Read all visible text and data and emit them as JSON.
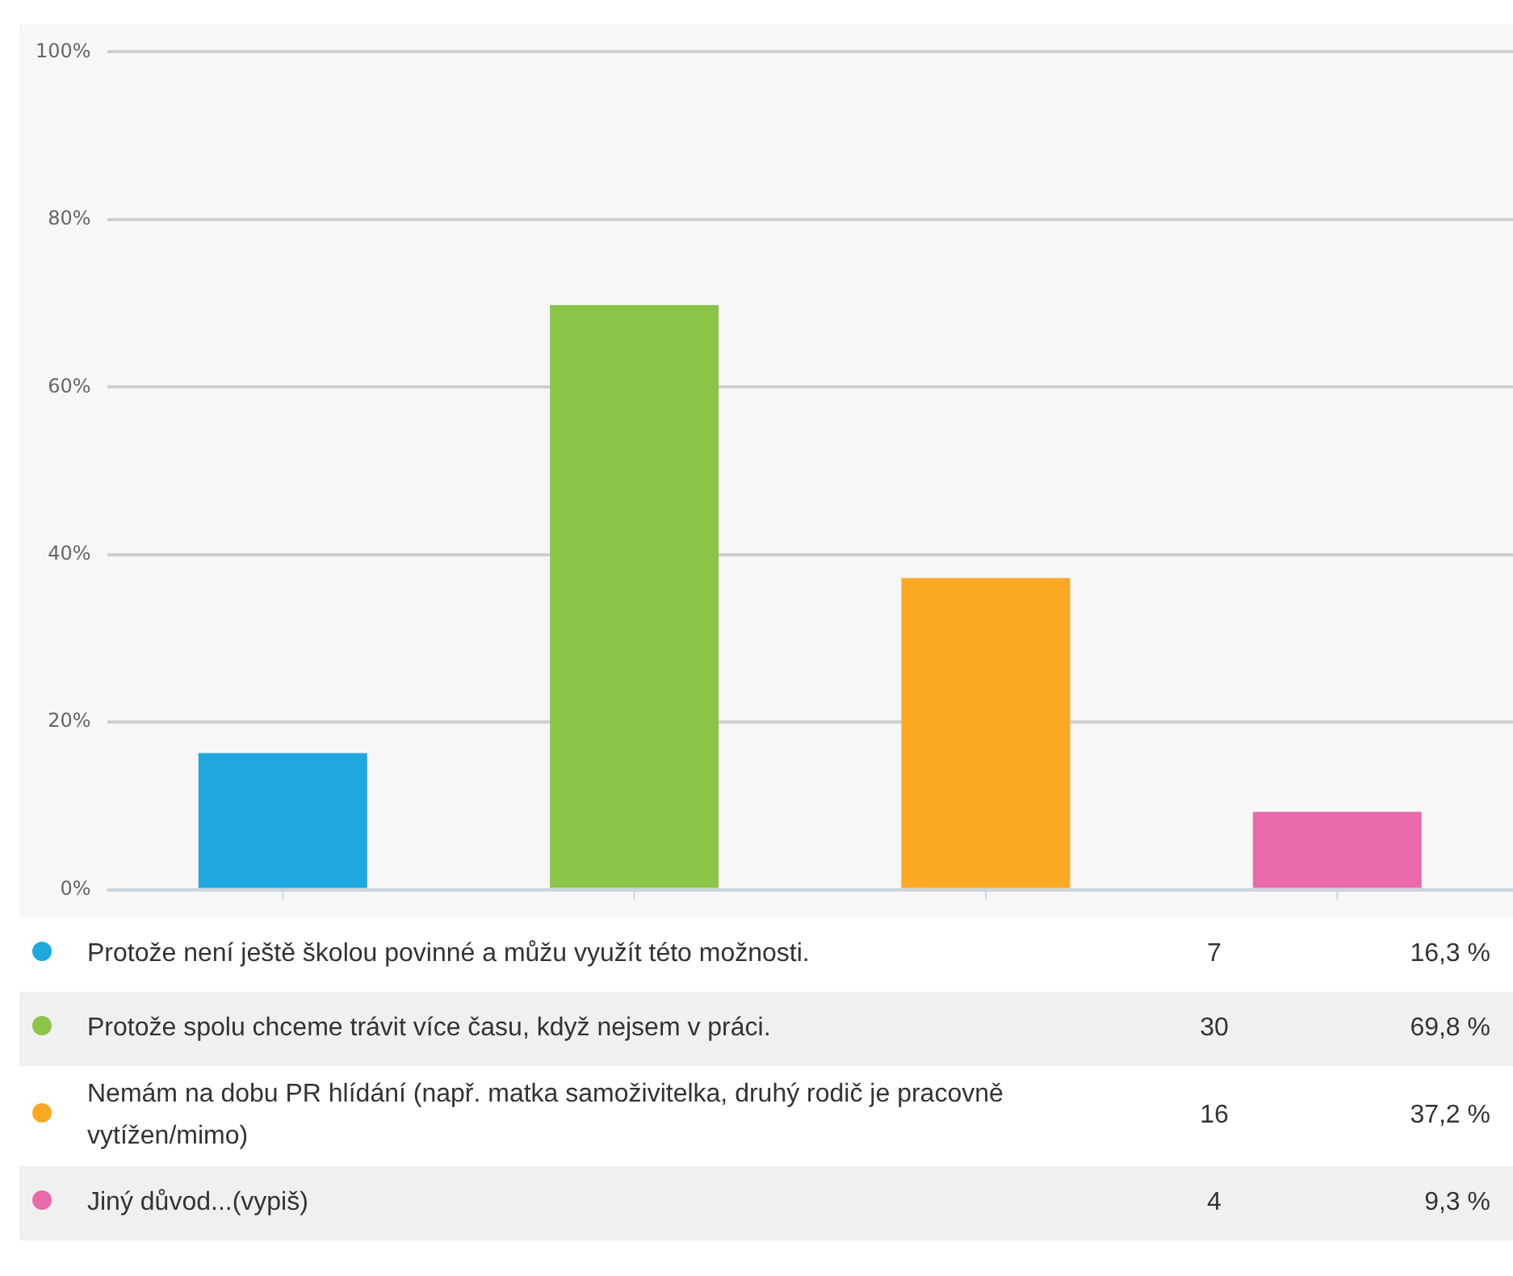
{
  "chart_data": {
    "type": "bar",
    "categories": [
      null
    ],
    "series": [
      {
        "name": "Protože není ještě školou povinné a můžu využít této možnosti.",
        "color": "#1ea8df",
        "values": [
          16.3
        ]
      },
      {
        "name": "Protože spolu chceme trávit více času, když nejsem v práci.",
        "color": "#8bc548",
        "values": [
          69.8
        ]
      },
      {
        "name": "Nemám na dobu PR hlídání (např. matka samoživitelka, druhý rodič je pracovně vytížen/mimo)",
        "color": "#fba824",
        "values": [
          37.2
        ]
      },
      {
        "name": "Jiný důvod...(vypiš)",
        "color": "#e86aaa",
        "values": [
          9.3
        ]
      }
    ],
    "annotations": [
      "7",
      "16,3 %",
      "30",
      "69,8 %",
      "16",
      "37,2 %",
      "4",
      "9,3 %"
    ],
    "ylim": [
      0,
      100
    ],
    "yticks": [
      {
        "value": 0,
        "label": "0%"
      },
      {
        "value": 20,
        "label": "20%"
      },
      {
        "value": 40,
        "label": "40%"
      },
      {
        "value": 60,
        "label": "60%"
      },
      {
        "value": 80,
        "label": "80%"
      },
      {
        "value": 100,
        "label": "100%"
      }
    ],
    "grid": "y",
    "legend": "bottom",
    "tick_labels": "y"
  }
}
